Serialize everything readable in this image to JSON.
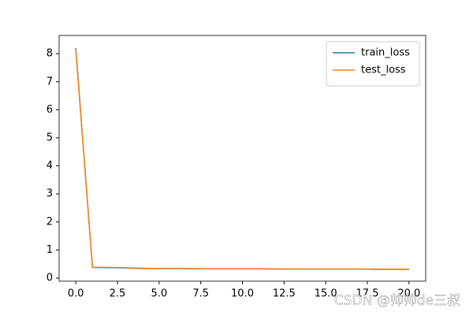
{
  "chart_data": {
    "type": "line",
    "x": [
      0,
      1,
      2,
      3,
      4,
      5,
      6,
      7,
      8,
      9,
      10,
      11,
      12,
      13,
      14,
      15,
      16,
      17,
      18,
      19,
      20
    ],
    "series": [
      {
        "name": "train_loss",
        "color": "#1f77b4",
        "values": [
          8.2,
          0.38,
          0.37,
          0.36,
          0.34,
          0.34,
          0.34,
          0.33,
          0.33,
          0.33,
          0.33,
          0.33,
          0.32,
          0.32,
          0.32,
          0.32,
          0.32,
          0.32,
          0.31,
          0.31,
          0.31
        ]
      },
      {
        "name": "test_loss",
        "color": "#ff7f0e",
        "values": [
          8.15,
          0.39,
          0.38,
          0.37,
          0.35,
          0.34,
          0.34,
          0.34,
          0.33,
          0.33,
          0.33,
          0.33,
          0.33,
          0.32,
          0.32,
          0.32,
          0.32,
          0.32,
          0.32,
          0.31,
          0.31
        ]
      }
    ],
    "xlim": [
      -1,
      21
    ],
    "xticks": [
      {
        "value": 0,
        "label": "0.0"
      },
      {
        "value": 2.5,
        "label": "2.5"
      },
      {
        "value": 5,
        "label": "5.0"
      },
      {
        "value": 7.5,
        "label": "7.5"
      },
      {
        "value": 10,
        "label": "10.0"
      },
      {
        "value": 12.5,
        "label": "12.5"
      },
      {
        "value": 15,
        "label": "15.0"
      },
      {
        "value": 17.5,
        "label": "17.5"
      },
      {
        "value": 20,
        "label": "20.0"
      }
    ],
    "ylim": [
      -0.11,
      8.65
    ],
    "yticks": [
      0,
      1,
      2,
      3,
      4,
      5,
      6,
      7,
      8
    ],
    "legend": "upper right",
    "watermark": "CSDN @帅帅de三叔"
  }
}
